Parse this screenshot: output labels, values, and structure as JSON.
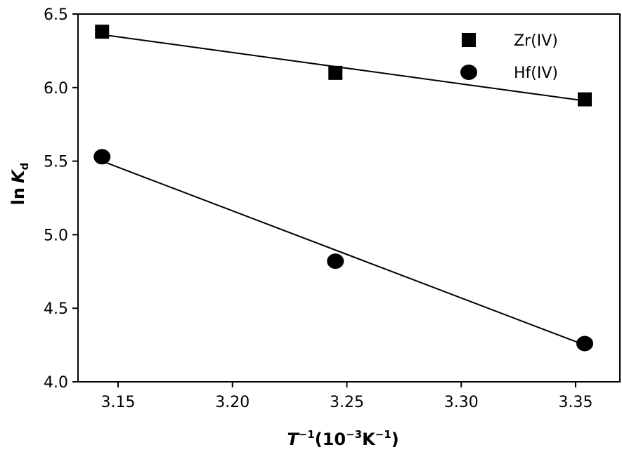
{
  "chart_data": {
    "type": "scatter",
    "xlabel": {
      "base": "T",
      "exp1": "−1",
      "unit_open": "(10",
      "exp2": "−3",
      "unit_mid": "K",
      "exp3": "−1",
      "unit_close": ")"
    },
    "ylabel": {
      "prefix": "ln",
      "var": "K",
      "sub": "d"
    },
    "xlim": [
      3.12,
      3.37
    ],
    "ylim": [
      4.0,
      6.5
    ],
    "x_ticks": [
      "3.15",
      "3.20",
      "3.25",
      "3.30",
      "3.35"
    ],
    "y_ticks": [
      "4.0",
      "4.5",
      "5.0",
      "5.5",
      "6.0",
      "6.5"
    ],
    "legend_position": "top-right",
    "series": [
      {
        "name": "Zr(IV)",
        "marker": "square",
        "color": "#000000",
        "x": [
          3.143,
          3.245,
          3.354
        ],
        "y": [
          6.38,
          6.1,
          5.92
        ],
        "fit": {
          "x": [
            3.143,
            3.354
          ],
          "y": [
            6.36,
            5.91
          ]
        }
      },
      {
        "name": "Hf(IV)",
        "marker": "circle",
        "color": "#000000",
        "x": [
          3.143,
          3.245,
          3.354
        ],
        "y": [
          5.53,
          4.82,
          4.26
        ],
        "fit": {
          "x": [
            3.143,
            3.354
          ],
          "y": [
            5.5,
            4.25
          ]
        }
      }
    ]
  }
}
